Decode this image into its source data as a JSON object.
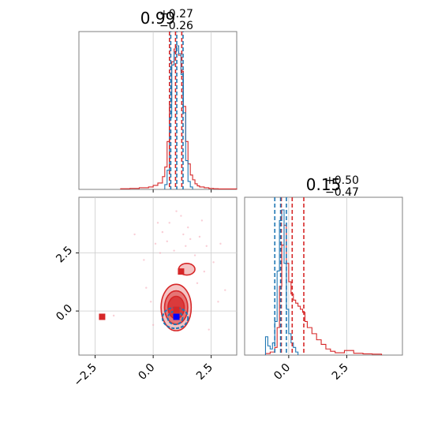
{
  "chart_data": [
    {
      "type": "histogram",
      "panel": "top-left",
      "title": {
        "value": "0.99",
        "upper": "+0.27",
        "lower": "−0.26"
      },
      "xlim": [
        -3.2,
        3.6
      ],
      "grid": true,
      "series": [
        {
          "name": "",
          "color": "#d62728",
          "bins": [
            -1.4,
            -1.0,
            -0.6,
            -0.2,
            0.0,
            0.2,
            0.4,
            0.5,
            0.6,
            0.7,
            0.8,
            0.9,
            1.0,
            1.1,
            1.2,
            1.3,
            1.4,
            1.5,
            1.6,
            1.7,
            1.8,
            1.9,
            2.0,
            2.2,
            2.4,
            2.6,
            2.8,
            3.6
          ],
          "counts": [
            0.4,
            0.6,
            1.0,
            1.5,
            2.5,
            4,
            8,
            14,
            30,
            55,
            80,
            88,
            90,
            84,
            74,
            52,
            30,
            16,
            9,
            6,
            3.5,
            2.2,
            1.5,
            1.0,
            0.6,
            0.4,
            0.3
          ]
        },
        {
          "name": "",
          "color": "#1f77b4",
          "bins": [
            0.5,
            0.6,
            0.7,
            0.8,
            0.9,
            1.0,
            1.1,
            1.2,
            1.3,
            1.4,
            1.5,
            1.6,
            1.7
          ],
          "counts": [
            3,
            12,
            45,
            78,
            86,
            90,
            85,
            72,
            48,
            18,
            5,
            1.5
          ]
        }
      ],
      "quantile_lines": [
        {
          "color": "#d62728",
          "x": [
            0.73,
            0.99,
            1.26
          ]
        },
        {
          "color": "#1f77b4",
          "x": [
            0.73,
            0.99,
            1.26
          ]
        }
      ]
    },
    {
      "type": "histogram",
      "panel": "bottom-right",
      "title": {
        "value": "0.15",
        "upper": "+0.50",
        "lower": "−0.47"
      },
      "xlim": [
        -1.9,
        4.9
      ],
      "xticks": [
        "0.0",
        "2.5"
      ],
      "grid": true,
      "series": [
        {
          "name": "",
          "color": "#d62728",
          "bins": [
            -1.0,
            -0.8,
            -0.6,
            -0.5,
            -0.4,
            -0.3,
            -0.2,
            -0.1,
            0.0,
            0.1,
            0.2,
            0.3,
            0.4,
            0.5,
            0.6,
            0.7,
            0.8,
            1.0,
            1.2,
            1.4,
            1.6,
            1.8,
            2.0,
            2.4,
            2.8,
            3.2,
            3.6,
            4.0
          ],
          "counts": [
            1,
            2,
            5,
            18,
            45,
            72,
            85,
            60,
            48,
            40,
            36,
            34,
            32,
            30,
            28,
            22,
            18,
            14,
            10,
            7,
            4,
            2.5,
            1.5,
            3,
            1.2,
            0.8,
            0.6
          ]
        },
        {
          "name": "",
          "color": "#1f77b4",
          "bins": [
            -1.0,
            -0.9,
            -0.8,
            -0.7,
            -0.6,
            -0.5,
            -0.4,
            -0.3,
            -0.2,
            -0.1,
            0.0,
            0.1,
            0.2,
            0.3,
            0.4
          ],
          "counts": [
            12,
            6,
            4,
            8,
            22,
            55,
            88,
            95,
            60,
            30,
            14,
            8,
            5,
            2
          ]
        }
      ],
      "quantile_lines": [
        {
          "color": "#d62728",
          "x": [
            -0.32,
            0.15,
            0.65
          ]
        },
        {
          "color": "#1f77b4",
          "x": [
            -0.6,
            -0.35,
            -0.1
          ]
        }
      ]
    },
    {
      "type": "contour",
      "panel": "bottom-left",
      "xlim": [
        -3.2,
        3.6
      ],
      "ylim": [
        -1.9,
        4.9
      ],
      "xticks": [
        "−2.5",
        "0.0",
        "2.5"
      ],
      "yticks": [
        "0.0",
        "2.5"
      ],
      "grid": true,
      "scatter_points": [
        [
          -0.8,
          3.3
        ],
        [
          0.2,
          3.8
        ],
        [
          0.6,
          3.0
        ],
        [
          1.2,
          4.1
        ],
        [
          1.5,
          3.6
        ],
        [
          2.0,
          3.2
        ],
        [
          2.3,
          2.8
        ],
        [
          0.9,
          2.6
        ],
        [
          1.8,
          2.4
        ],
        [
          2.6,
          2.1
        ],
        [
          0.1,
          2.9
        ],
        [
          -0.4,
          2.2
        ],
        [
          1.4,
          2.8
        ],
        [
          0.4,
          3.4
        ],
        [
          2.1,
          3.9
        ],
        [
          3.1,
          0.9
        ],
        [
          2.8,
          0.4
        ],
        [
          -0.1,
          0.4
        ],
        [
          0.0,
          -0.6
        ],
        [
          2.4,
          -0.8
        ],
        [
          -1.7,
          -0.2
        ],
        [
          1.6,
          3.1
        ],
        [
          1.0,
          4.3
        ],
        [
          0.3,
          2.5
        ],
        [
          2.9,
          2.9
        ],
        [
          1.9,
          1.2
        ],
        [
          -0.3,
          1.0
        ],
        [
          0.7,
          3.8
        ],
        [
          1.3,
          3.3
        ],
        [
          2.2,
          1.7
        ]
      ],
      "series": [
        {
          "name": "",
          "color": "#d62728",
          "center": [
            0.99,
            0.15
          ],
          "levels": [
            {
              "rx": 0.65,
              "ry": 1.0,
              "opacity": 0.28
            },
            {
              "rx": 0.5,
              "ry": 0.72,
              "opacity": 0.5
            },
            {
              "rx": 0.35,
              "ry": 0.48,
              "opacity": 0.75
            }
          ],
          "outer_lobe": {
            "x": 1.45,
            "y": 1.8,
            "rx": 0.35,
            "ry": 0.25
          },
          "markers": [
            [
              -2.2,
              -0.25
            ],
            [
              1.2,
              1.7
            ],
            [
              1.0,
              0.05
            ]
          ]
        },
        {
          "name": "",
          "color": "#1f77b4",
          "center": [
            0.95,
            -0.3
          ],
          "levels": [
            {
              "rx": 0.55,
              "ry": 0.45
            },
            {
              "rx": 0.32,
              "ry": 0.28
            }
          ],
          "markers": [
            [
              1.0,
              -0.25
            ]
          ]
        }
      ]
    }
  ]
}
